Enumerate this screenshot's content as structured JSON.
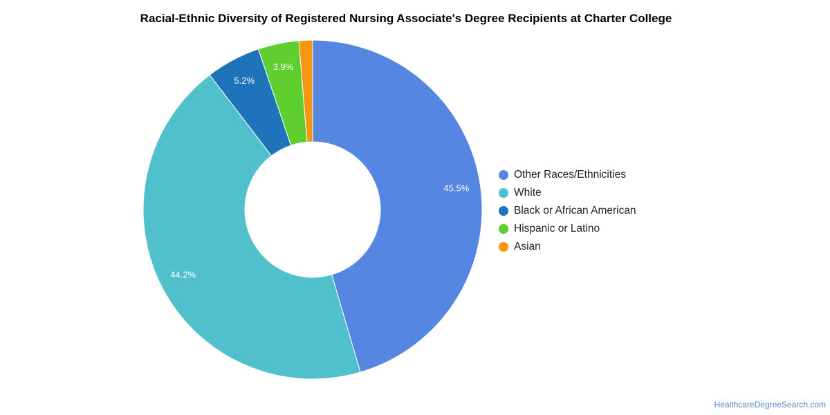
{
  "chart_data": {
    "type": "pie",
    "style": "donut",
    "title": "Racial-Ethnic Diversity of Registered Nursing Associate's Degree Recipients at Charter College",
    "categories": [
      "Other Races/Ethnicities",
      "White",
      "Black or African American",
      "Hispanic or Latino",
      "Asian"
    ],
    "values": [
      45.5,
      44.2,
      5.2,
      3.9,
      1.3
    ],
    "data_labels": [
      "45.5%",
      "44.2%",
      "5.2%",
      "3.9%",
      ""
    ],
    "colors": [
      "#5486e2",
      "#51c0cd",
      "#1f73bb",
      "#5fce2f",
      "#f6950f"
    ],
    "legend": "right"
  },
  "watermark": "HealthcareDegreeSearch.com"
}
